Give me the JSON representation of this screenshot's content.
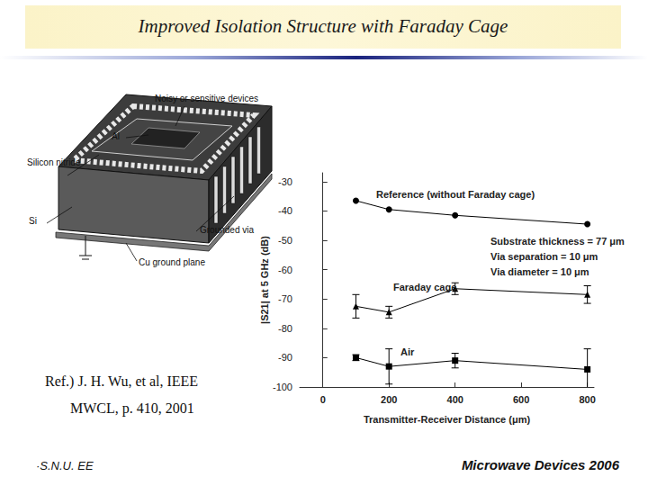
{
  "title": "Improved Isolation Structure with Faraday Cage",
  "diagram": {
    "labels": [
      "Noisy or sensitive devices",
      "Al",
      "Silicon nitride",
      "Si",
      "Grounded via",
      "Cu ground plane"
    ]
  },
  "reference": [
    "Ref.) J. H. Wu, et al, IEEE",
    "MWCL, p. 410, 2001"
  ],
  "footer": {
    "left": "·S.N.U. EE",
    "right": "Microwave Devices 2006"
  },
  "chart_data": {
    "type": "line",
    "x_label": "Transmitter-Receiver Distance (μm)",
    "y_label": "|S21| at 5 GHz (dB)",
    "xlim": [
      -70,
      820
    ],
    "xticks": [
      0,
      200,
      400,
      600,
      800
    ],
    "ylim": [
      -100,
      -27
    ],
    "yticks": [
      -100,
      -90,
      -80,
      -70,
      -60,
      -50,
      -40,
      -30
    ],
    "grid": false,
    "x": [
      100,
      200,
      400,
      800
    ],
    "series": [
      {
        "name": "Reference (without Faraday cage)",
        "color": "#000000",
        "marker": "circle",
        "line_style": "solid",
        "values": [
          -36.5,
          -39.5,
          -41.5,
          -44.5
        ]
      },
      {
        "name": "Faraday cage",
        "color": "#000000",
        "marker": "triangle",
        "line_style": "solid",
        "values": [
          -72.5,
          -74.5,
          -66.5,
          -68.5
        ],
        "errors": [
          4,
          2,
          2,
          3
        ]
      },
      {
        "name": "Air",
        "color": "#000000",
        "marker": "rect",
        "line_style": "solid",
        "values": [
          -90,
          -93,
          -91,
          -94
        ],
        "errors": [
          1,
          6,
          2.5,
          7
        ]
      }
    ],
    "annotations": [
      "Substrate thickness = 77 μm",
      "Via separation = 10 μm",
      "Via diameter = 10 μm"
    ]
  }
}
